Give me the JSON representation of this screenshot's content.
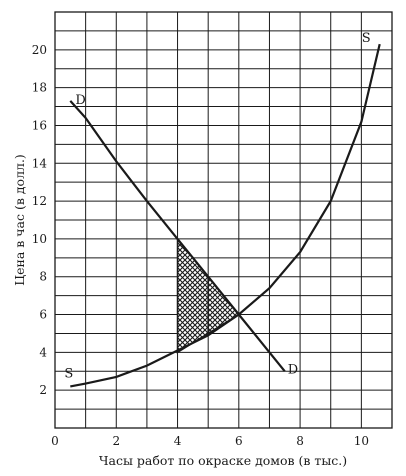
{
  "chart_data": {
    "type": "line",
    "xlabel": "Часы работ по окраске домов (в тыс.)",
    "ylabel": "Цена в час (в долл.)",
    "xlim": [
      0,
      11
    ],
    "ylim": [
      0,
      22
    ],
    "x_ticks": [
      "0",
      "2",
      "4",
      "6",
      "8",
      "10"
    ],
    "y_ticks": [
      "2",
      "4",
      "6",
      "8",
      "10",
      "12",
      "14",
      "16",
      "18",
      "20"
    ],
    "grid": true,
    "series": [
      {
        "name": "D",
        "x": [
          0.5,
          1,
          2,
          3,
          4,
          5,
          6,
          7,
          7.5
        ],
        "y": [
          17.3,
          16.4,
          14.1,
          12.0,
          10.0,
          8.0,
          6.0,
          4.0,
          3.0
        ],
        "start_label": "D",
        "end_label": "D"
      },
      {
        "name": "S",
        "x": [
          0.5,
          1,
          2,
          3,
          4,
          5,
          6,
          7,
          8,
          9,
          10,
          10.6
        ],
        "y": [
          2.2,
          2.35,
          2.7,
          3.3,
          4.1,
          4.9,
          6.0,
          7.4,
          9.3,
          12.0,
          16.2,
          20.3
        ],
        "start_label": "S",
        "end_label": "S"
      }
    ],
    "shaded_region": {
      "vertices_x": [
        4,
        6,
        4
      ],
      "vertices_y": [
        10,
        6,
        4
      ],
      "pattern": "crosshatch"
    },
    "equilibrium": {
      "x": 6,
      "y": 6
    }
  }
}
